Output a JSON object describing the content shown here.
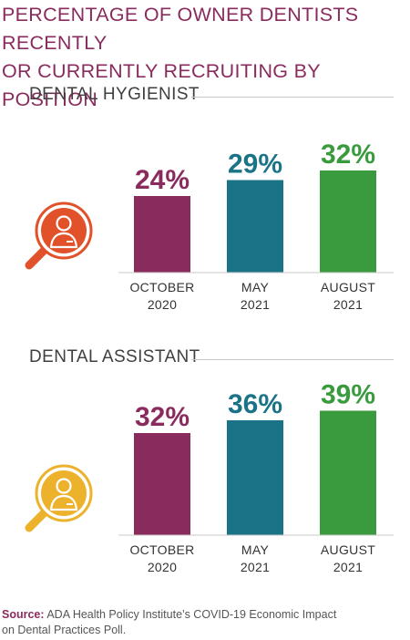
{
  "title_line1": "PERCENTAGE OF OWNER DENTISTS RECENTLY",
  "title_line2": "OR CURRENTLY RECRUITING BY POSITION",
  "source_label": "Source:",
  "source_text_line1": "ADA Health Policy Institute’s COVID-19 Economic Impact",
  "source_text_line2": "on Dental Practices Poll.",
  "colors": {
    "title": "#8a2b5e",
    "october_2020": "#8a2b5e",
    "may_2021": "#1a7386",
    "august_2021": "#3a9a3e",
    "hygienist_icon": "#e1512a",
    "assistant_icon": "#ecb22b"
  },
  "icons": {
    "hygienist": "person-magnifier-icon",
    "assistant": "person-magnifier-icon"
  },
  "chart_data": [
    {
      "type": "bar",
      "title": "DENTAL HYGIENIST",
      "categories": [
        [
          "OCTOBER",
          "2020"
        ],
        [
          "MAY",
          "2021"
        ],
        [
          "AUGUST",
          "2021"
        ]
      ],
      "values": [
        24,
        29,
        32
      ],
      "value_labels": [
        "24%",
        "29%",
        "32%"
      ],
      "ylim": [
        0,
        45
      ]
    },
    {
      "type": "bar",
      "title": "DENTAL ASSISTANT",
      "categories": [
        [
          "OCTOBER",
          "2020"
        ],
        [
          "MAY",
          "2021"
        ],
        [
          "AUGUST",
          "2021"
        ]
      ],
      "values": [
        32,
        36,
        39
      ],
      "value_labels": [
        "32%",
        "36%",
        "39%"
      ],
      "ylim": [
        0,
        45
      ]
    }
  ]
}
